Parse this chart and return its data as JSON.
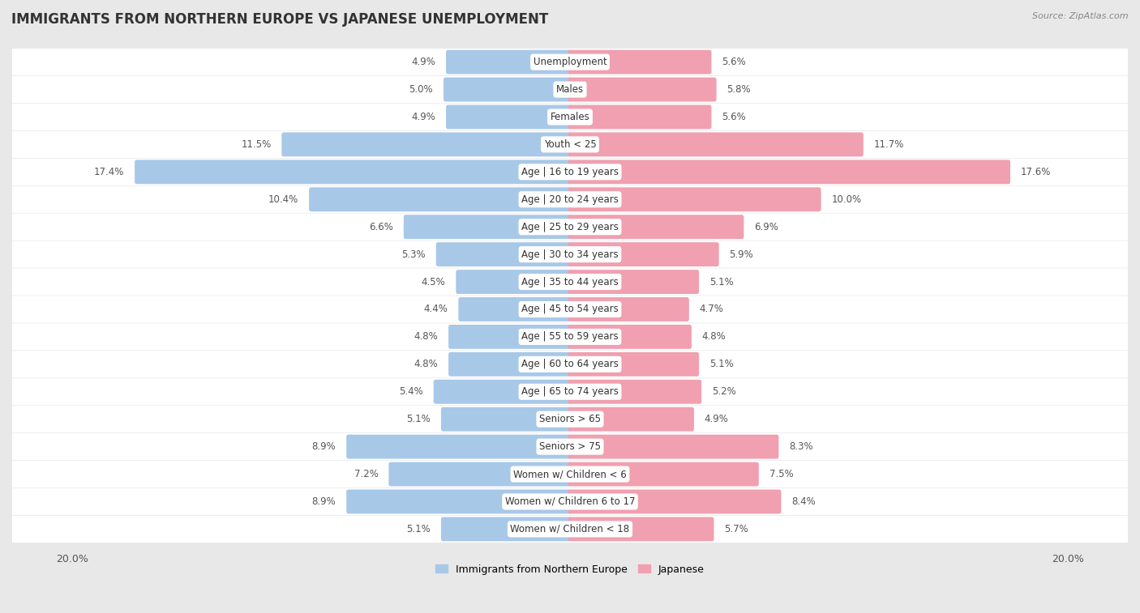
{
  "title": "IMMIGRANTS FROM NORTHERN EUROPE VS JAPANESE UNEMPLOYMENT",
  "source": "Source: ZipAtlas.com",
  "categories": [
    "Unemployment",
    "Males",
    "Females",
    "Youth < 25",
    "Age | 16 to 19 years",
    "Age | 20 to 24 years",
    "Age | 25 to 29 years",
    "Age | 30 to 34 years",
    "Age | 35 to 44 years",
    "Age | 45 to 54 years",
    "Age | 55 to 59 years",
    "Age | 60 to 64 years",
    "Age | 65 to 74 years",
    "Seniors > 65",
    "Seniors > 75",
    "Women w/ Children < 6",
    "Women w/ Children 6 to 17",
    "Women w/ Children < 18"
  ],
  "left_values": [
    4.9,
    5.0,
    4.9,
    11.5,
    17.4,
    10.4,
    6.6,
    5.3,
    4.5,
    4.4,
    4.8,
    4.8,
    5.4,
    5.1,
    8.9,
    7.2,
    8.9,
    5.1
  ],
  "right_values": [
    5.6,
    5.8,
    5.6,
    11.7,
    17.6,
    10.0,
    6.9,
    5.9,
    5.1,
    4.7,
    4.8,
    5.1,
    5.2,
    4.9,
    8.3,
    7.5,
    8.4,
    5.7
  ],
  "left_color": "#a8c8e8",
  "right_color": "#f0a0b0",
  "left_label": "Immigrants from Northern Europe",
  "right_label": "Japanese",
  "axis_max": 20.0,
  "background_color": "#e8e8e8",
  "row_color": "#ffffff",
  "title_fontsize": 12,
  "value_fontsize": 8.5,
  "category_fontsize": 8.5
}
